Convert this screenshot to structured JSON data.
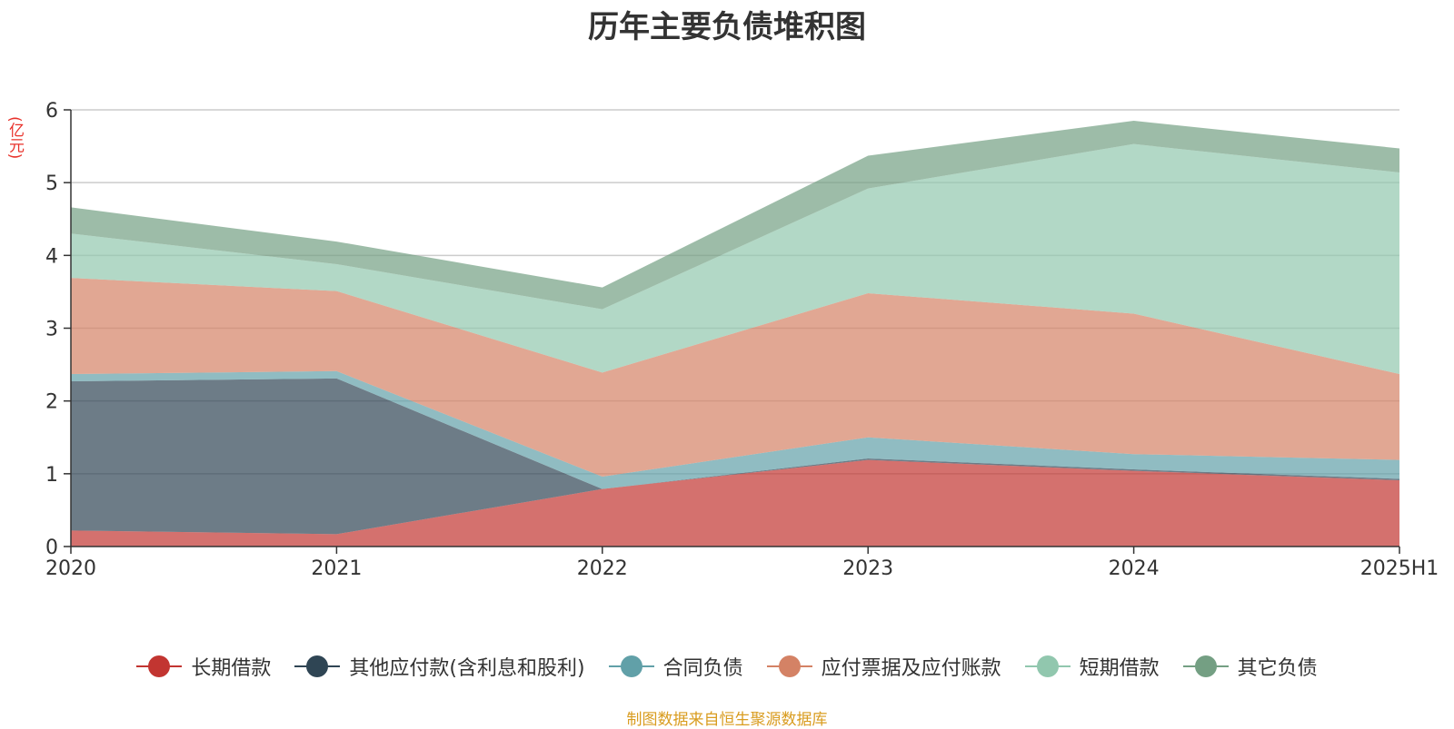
{
  "chart_data": {
    "type": "area",
    "stacked": true,
    "title": "历年主要负债堆积图",
    "ylabel": "(亿元)",
    "xlabel": "",
    "ylim": [
      0,
      6
    ],
    "yticks": [
      "0",
      "1",
      "2",
      "3",
      "4",
      "5",
      "6"
    ],
    "categories": [
      "2020",
      "2021",
      "2022",
      "2023",
      "2024",
      "2025H1"
    ],
    "grid": true,
    "legend_position": "bottom",
    "series": [
      {
        "name": "长期借款",
        "color": "#c23531",
        "values": [
          0.22,
          0.17,
          0.79,
          1.19,
          1.04,
          0.91
        ]
      },
      {
        "name": "其他应付款(含利息和股利)",
        "color": "#2f4554",
        "values": [
          2.05,
          2.14,
          0.0,
          0.02,
          0.02,
          0.02
        ]
      },
      {
        "name": "合同负债",
        "color": "#61a0a8",
        "values": [
          0.1,
          0.1,
          0.17,
          0.29,
          0.21,
          0.26
        ]
      },
      {
        "name": "应付票据及应付账款",
        "color": "#d48265",
        "values": [
          1.32,
          1.1,
          1.43,
          1.98,
          1.93,
          1.18
        ]
      },
      {
        "name": "短期借款",
        "color": "#91c7ae",
        "values": [
          0.61,
          0.37,
          0.87,
          1.44,
          2.33,
          2.77
        ]
      },
      {
        "name": "其它负债",
        "color": "#749f83",
        "values": [
          0.36,
          0.31,
          0.3,
          0.45,
          0.32,
          0.33
        ]
      }
    ]
  },
  "source_text": "制图数据来自恒生聚源数据库"
}
